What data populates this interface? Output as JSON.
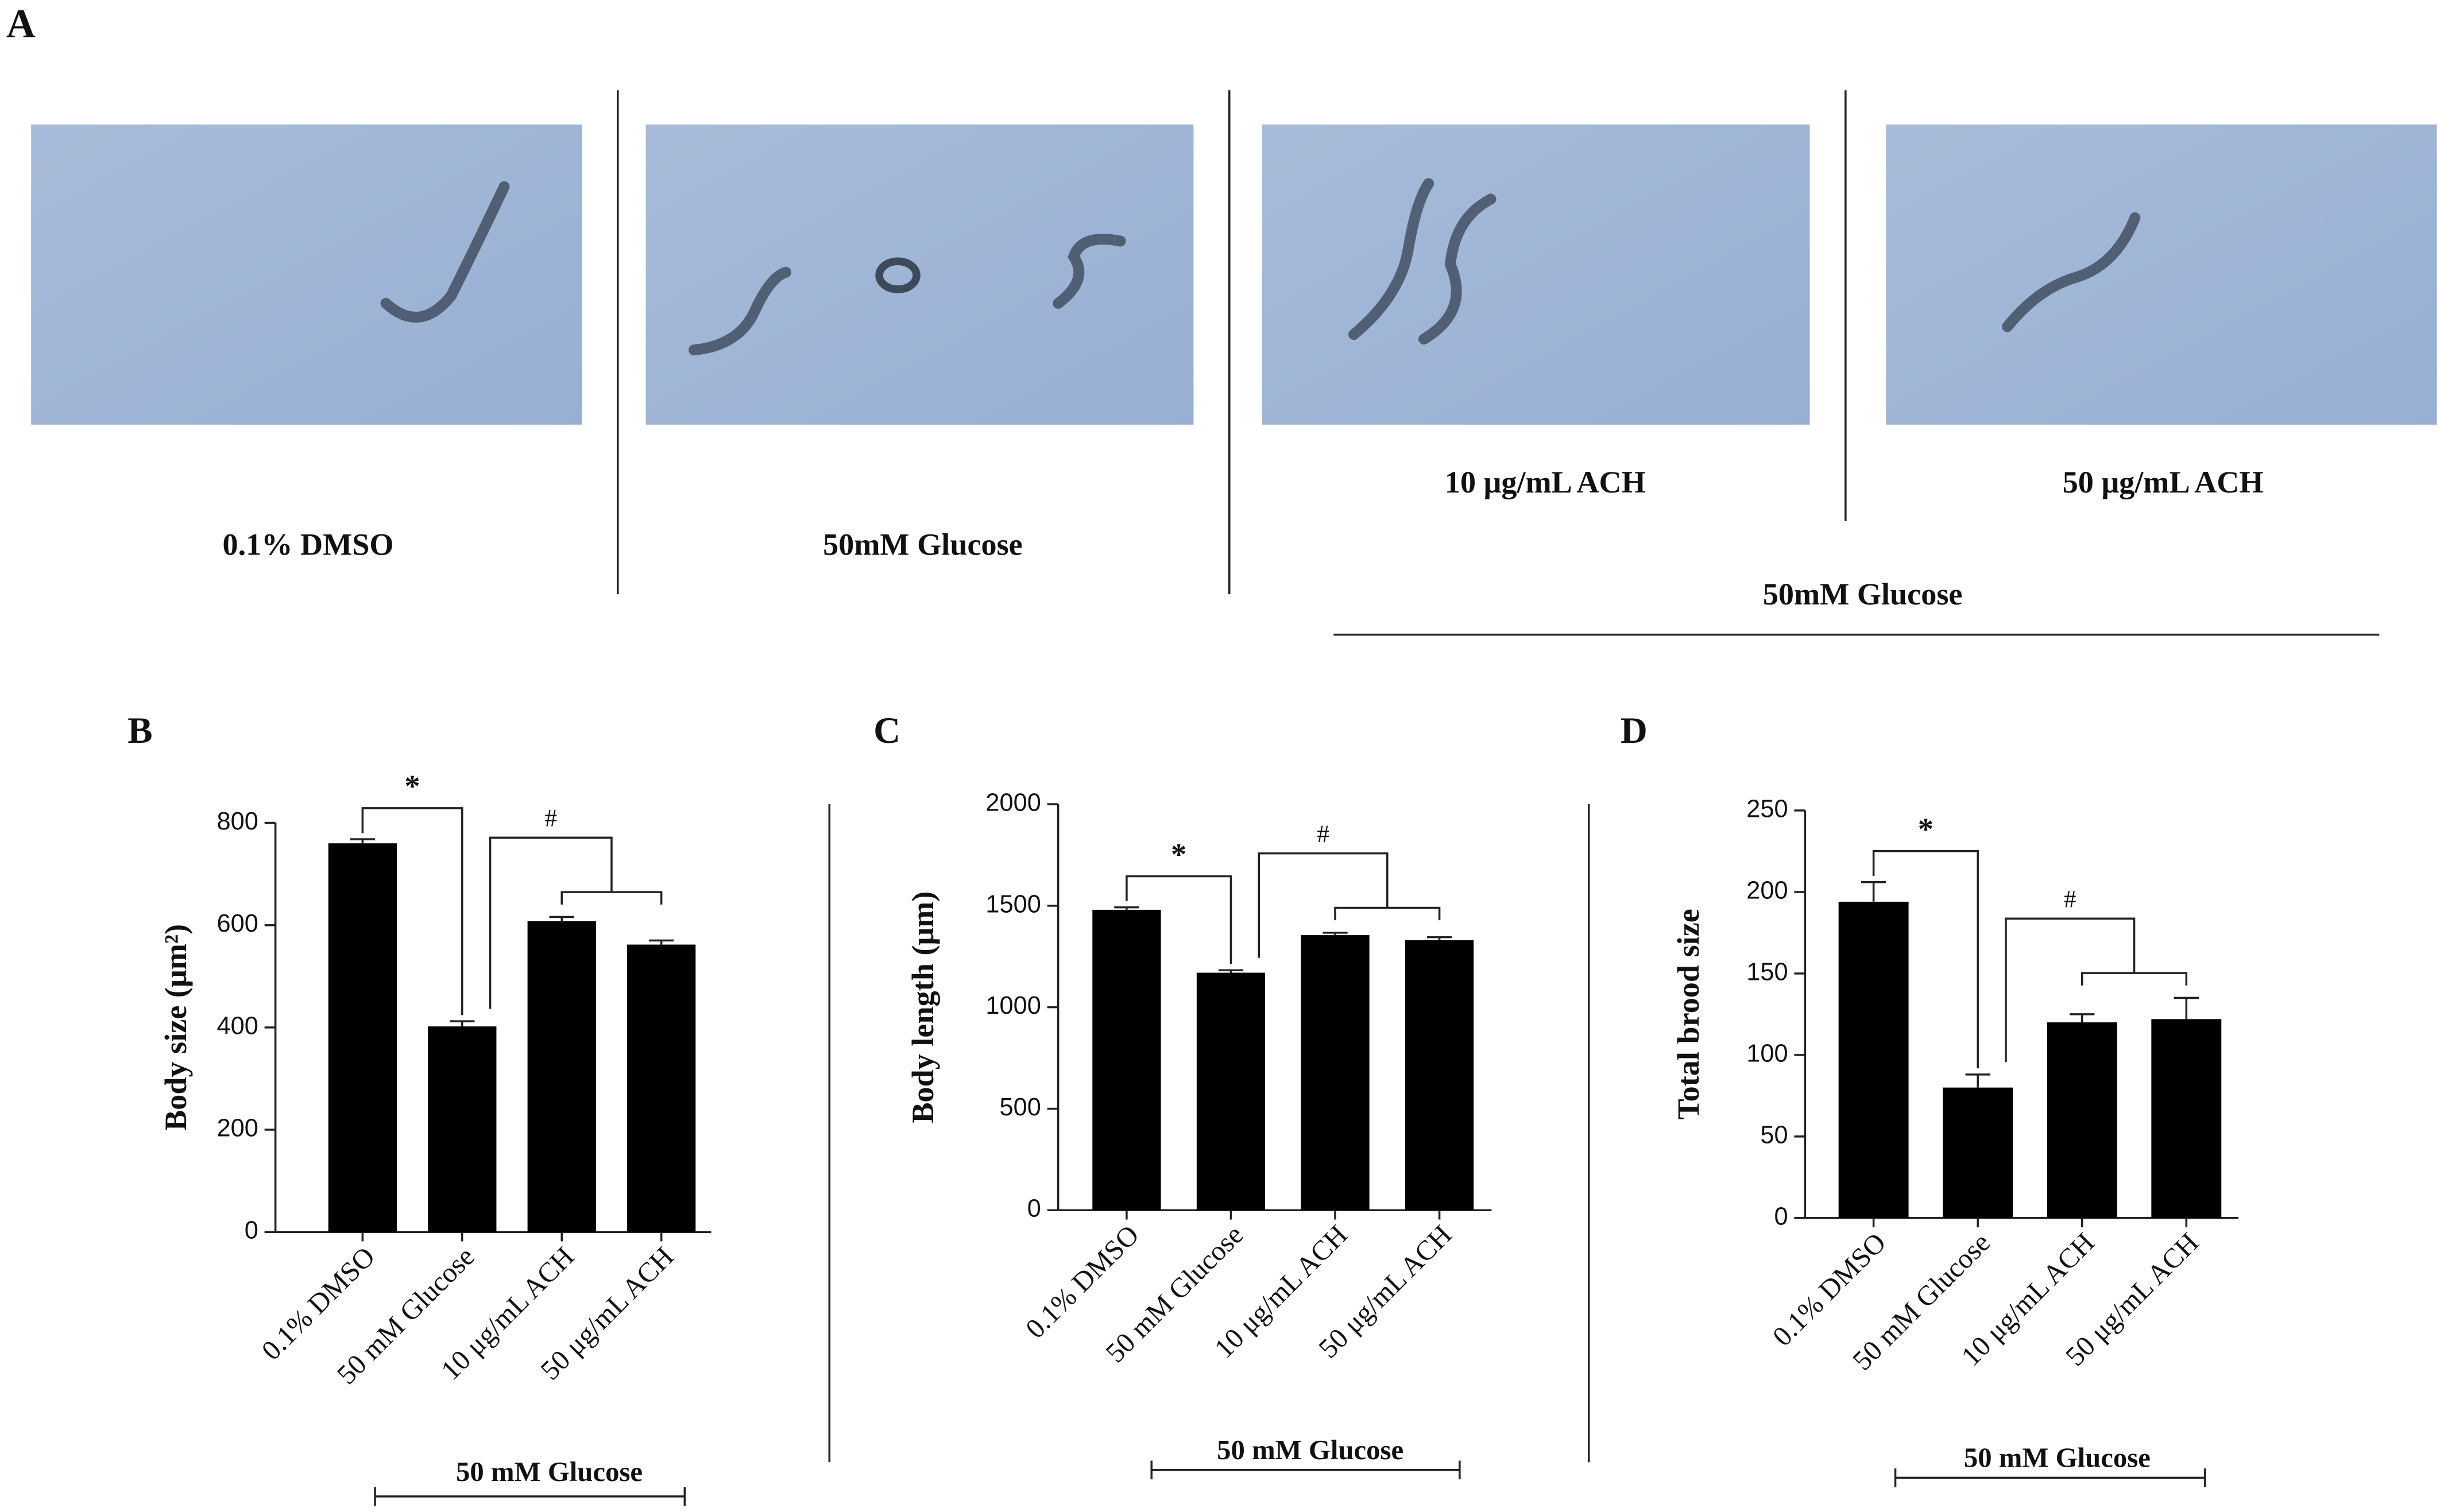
{
  "panel_a": {
    "label": "A",
    "images": [
      "0.1% DMSO",
      "50mM Glucose",
      "10 μg/mL ACH",
      "50 μg/mL ACH"
    ],
    "group_label": "50mM Glucose"
  },
  "chart_data": [
    {
      "type": "bar",
      "panel": "B",
      "ylabel": "Body size (μm²)",
      "categories": [
        "0.1% DMSO",
        "50 mM Glucose",
        "10 μg/mL ACH",
        "50 μg/mL ACH"
      ],
      "values": [
        760,
        402,
        608,
        562
      ],
      "errors": [
        8,
        10,
        8,
        8
      ],
      "color": "#000000",
      "ylim": [
        0,
        800
      ],
      "yticks": [
        0,
        200,
        400,
        600,
        800
      ],
      "annotations": [
        "*",
        "#"
      ],
      "group_label": "50 mM Glucose"
    },
    {
      "type": "bar",
      "panel": "C",
      "ylabel": "Body length (μm)",
      "categories": [
        "0.1% DMSO",
        "50 mM Glucose",
        "10 μg/mL ACH",
        "50 μg/mL ACH"
      ],
      "values": [
        1480,
        1170,
        1355,
        1330
      ],
      "errors": [
        12,
        12,
        12,
        15
      ],
      "color": "#000000",
      "ylim": [
        0,
        2000
      ],
      "yticks": [
        0,
        500,
        1000,
        1500,
        2000
      ],
      "annotations": [
        "*",
        "#"
      ],
      "group_label": "50 mM Glucose"
    },
    {
      "type": "bar",
      "panel": "D",
      "ylabel": "Total brood size",
      "categories": [
        "0.1% DMSO",
        "50 mM Glucose",
        "10 μg/mL ACH",
        "50 μg/mL ACH"
      ],
      "values": [
        194,
        80,
        120,
        122
      ],
      "errors": [
        12,
        8,
        5,
        13
      ],
      "color": "#000000",
      "ylim": [
        0,
        250
      ],
      "yticks": [
        0,
        50,
        100,
        150,
        200,
        250
      ],
      "annotations": [
        "*",
        "#"
      ],
      "group_label": "50 mM Glucose"
    }
  ]
}
